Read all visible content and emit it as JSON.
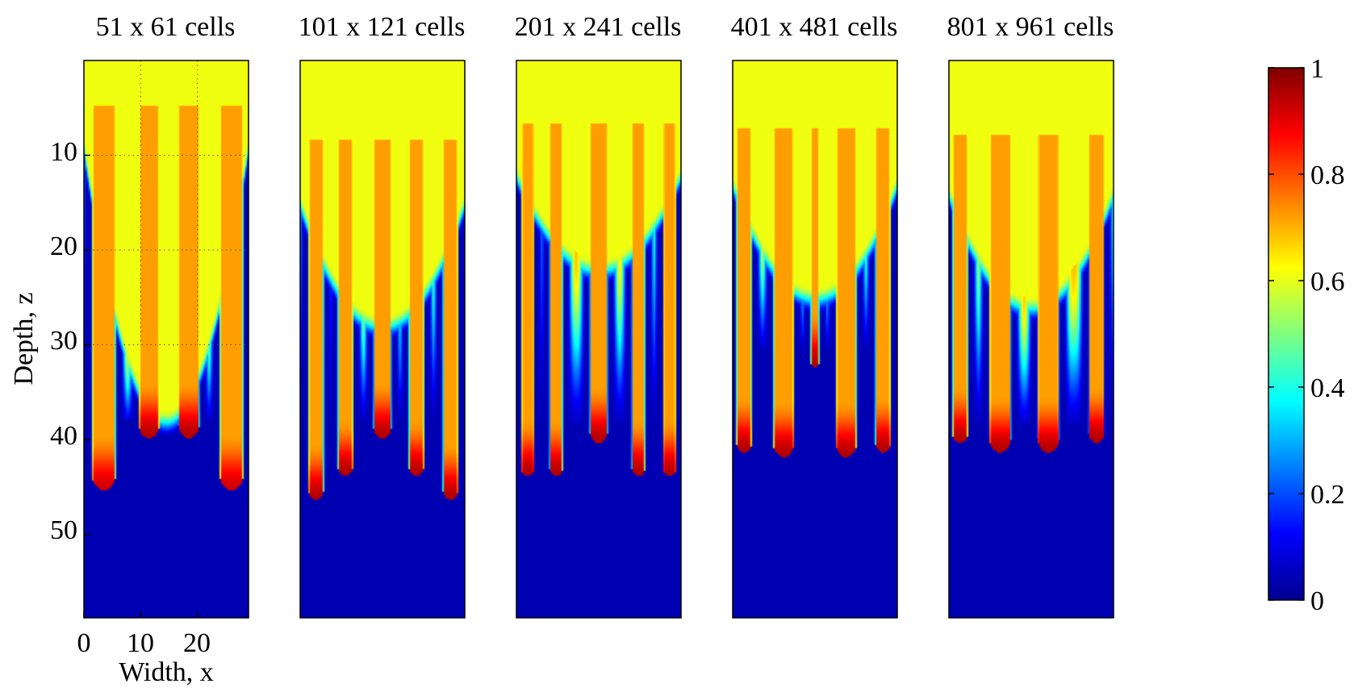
{
  "chart_data": {
    "type": "heatmap",
    "panel_titles": [
      "51 x 61 cells",
      "101 x 121 cells",
      "201 x 241 cells",
      "401 x 481 cells",
      "801 x 961 cells"
    ],
    "xlabel": "Width, x",
    "ylabel": "Depth, z",
    "xticks": [
      "0",
      "10",
      "20"
    ],
    "yticks": [
      "10",
      "20",
      "30",
      "40",
      "50"
    ],
    "xlim": [
      0,
      29
    ],
    "ylim": [
      0,
      59
    ],
    "y_reversed": true,
    "grid": "first panel only (dotted)",
    "colormap": "jet",
    "colorbar": {
      "range": [
        0,
        1
      ],
      "ticks": [
        "0",
        "0.2",
        "0.4",
        "0.6",
        "0.8",
        "1"
      ],
      "tick_values": [
        0,
        0.2,
        0.4,
        0.6,
        0.8,
        1
      ]
    },
    "field": {
      "top_value": 0.61,
      "bottom_value": 0.05,
      "finger_body_value": 0.72,
      "finger_tip_value": 0.95
    },
    "panels": [
      {
        "fingers": [
          {
            "x": 3.5,
            "depth": 45.5,
            "width": 4.6,
            "tip": 0.92
          },
          {
            "x": 11.5,
            "depth": 40,
            "width": 4.0,
            "tip": 0.95
          },
          {
            "x": 18.5,
            "depth": 40,
            "width": 4.0,
            "tip": 0.95
          },
          {
            "x": 26.0,
            "depth": 45.5,
            "width": 4.6,
            "tip": 0.92
          }
        ],
        "yellow_top": 8,
        "yellow_center": 37
      },
      {
        "fingers": [
          {
            "x": 2.8,
            "depth": 46.5,
            "width": 3.0
          },
          {
            "x": 8.0,
            "depth": 44,
            "width": 3.0
          },
          {
            "x": 14.5,
            "depth": 40,
            "width": 3.4
          },
          {
            "x": 20.5,
            "depth": 44,
            "width": 3.0
          },
          {
            "x": 26.5,
            "depth": 46.5,
            "width": 3.0
          }
        ],
        "yellow_top": 14,
        "yellow_center": 27
      },
      {
        "fingers": [
          {
            "x": 2.0,
            "depth": 44,
            "width": 2.6
          },
          {
            "x": 7.0,
            "depth": 44,
            "width": 2.6
          },
          {
            "x": 14.5,
            "depth": 40.5,
            "width": 3.4
          },
          {
            "x": 21.5,
            "depth": 44,
            "width": 2.6
          },
          {
            "x": 27.0,
            "depth": 44,
            "width": 2.6
          }
        ],
        "yellow_top": 11,
        "yellow_center": 21
      },
      {
        "fingers": [
          {
            "x": 2.0,
            "depth": 41.5,
            "width": 3.0
          },
          {
            "x": 9.0,
            "depth": 42,
            "width": 4.0
          },
          {
            "x": 14.5,
            "depth": 32.5,
            "width": 1.8
          },
          {
            "x": 20.0,
            "depth": 42,
            "width": 4.0
          },
          {
            "x": 26.5,
            "depth": 41.5,
            "width": 3.0
          }
        ],
        "yellow_top": 12,
        "yellow_center": 24
      },
      {
        "fingers": [
          {
            "x": 2.0,
            "depth": 40.5,
            "width": 3.0
          },
          {
            "x": 9.0,
            "depth": 41.5,
            "width": 4.2
          },
          {
            "x": 17.5,
            "depth": 41.5,
            "width": 4.2
          },
          {
            "x": 26.0,
            "depth": 40.5,
            "width": 3.0
          }
        ],
        "yellow_top": 13,
        "yellow_center": 25
      }
    ]
  }
}
